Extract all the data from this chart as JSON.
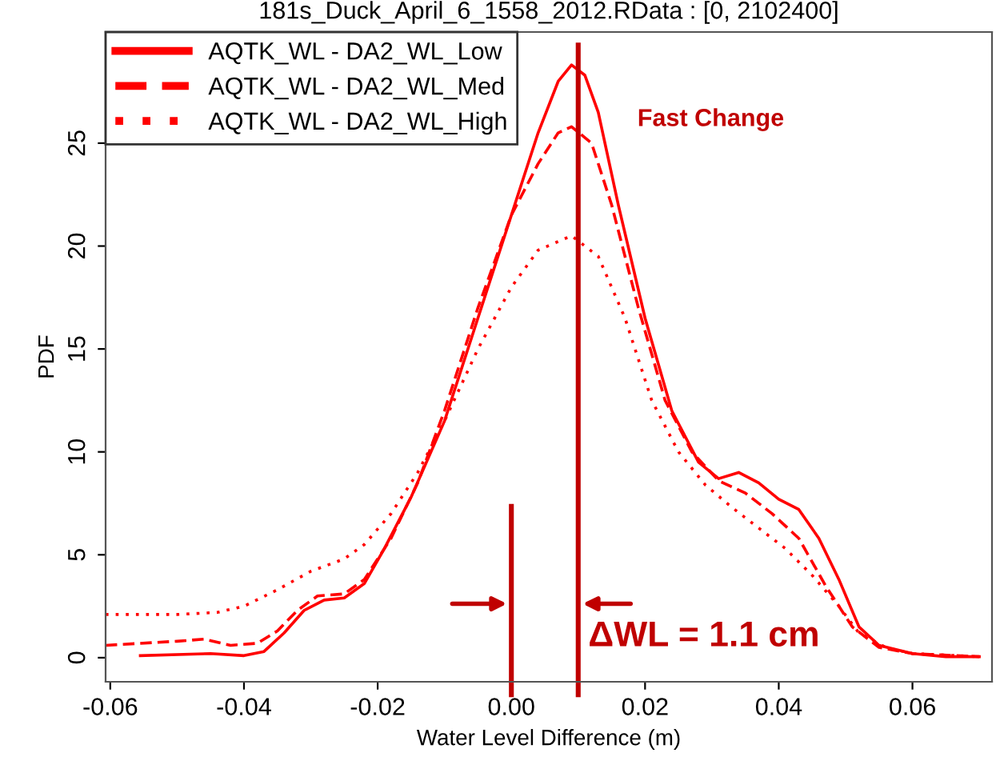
{
  "chart_data": {
    "type": "line",
    "title": "181s_Duck_April_6_1558_2012.RData : [0, 2102400]",
    "xlabel": "Water Level Difference (m)",
    "ylabel": "PDF",
    "xlim": [
      -0.0607,
      0.0719
    ],
    "ylim": [
      -1.17,
      30.4
    ],
    "xticks": [
      {
        "value": -0.06,
        "label": "-0.06"
      },
      {
        "value": -0.04,
        "label": "-0.04"
      },
      {
        "value": -0.02,
        "label": "-0.02"
      },
      {
        "value": 0,
        "label": "0.00"
      },
      {
        "value": 0.02,
        "label": "0.02"
      },
      {
        "value": 0.04,
        "label": "0.04"
      },
      {
        "value": 0.06,
        "label": "0.06"
      }
    ],
    "yticks": [
      0,
      5,
      10,
      15,
      20,
      25
    ],
    "grid": false,
    "legend": "top left",
    "marker": "none",
    "series": [
      {
        "name": "AQTK_WL - DA2_WL_Low",
        "color": "#ff0000",
        "line_style": "solid",
        "x": [
          -0.0555,
          -0.045,
          -0.04,
          -0.037,
          -0.034,
          -0.031,
          -0.028,
          -0.025,
          -0.022,
          -0.019,
          -0.015,
          -0.01,
          -0.005,
          0,
          0.004,
          0.007,
          0.009,
          0.011,
          0.013,
          0.016,
          0.02,
          0.024,
          0.028,
          0.031,
          0.034,
          0.037,
          0.04,
          0.043,
          0.046,
          0.049,
          0.052,
          0.055,
          0.06,
          0.065,
          0.07
        ],
        "values": [
          0.1,
          0.2,
          0.1,
          0.3,
          1.2,
          2.3,
          2.8,
          2.9,
          3.6,
          5.3,
          7.8,
          11.5,
          16.5,
          21.5,
          25.5,
          28,
          28.8,
          28.3,
          26.5,
          22,
          16.5,
          12,
          9.5,
          8.7,
          9.0,
          8.5,
          7.7,
          7.2,
          5.8,
          3.8,
          1.5,
          0.6,
          0.2,
          0.05,
          0.05
        ]
      },
      {
        "name": "AQTK_WL - DA2_WL_Med",
        "color": "#ff0000",
        "line_style": "dashed",
        "x": [
          -0.0607,
          -0.05,
          -0.046,
          -0.042,
          -0.038,
          -0.035,
          -0.032,
          -0.029,
          -0.025,
          -0.022,
          -0.018,
          -0.014,
          -0.01,
          -0.005,
          0,
          0.004,
          0.007,
          0.009,
          0.012,
          0.015,
          0.019,
          0.023,
          0.027,
          0.031,
          0.035,
          0.039,
          0.043,
          0.047,
          0.051,
          0.055,
          0.06,
          0.07
        ],
        "values": [
          0.6,
          0.8,
          0.9,
          0.6,
          0.7,
          1.3,
          2.3,
          3.0,
          3.1,
          3.8,
          5.8,
          8.5,
          12,
          17,
          21.5,
          24,
          25.5,
          25.8,
          25,
          22,
          17,
          12.5,
          10,
          8.6,
          8,
          7,
          5.8,
          3.5,
          1.5,
          0.5,
          0.2,
          0.05
        ]
      },
      {
        "name": "AQTK_WL - DA2_WL_High",
        "color": "#ff0000",
        "line_style": "dotted",
        "x": [
          -0.0607,
          -0.05,
          -0.044,
          -0.04,
          -0.035,
          -0.03,
          -0.025,
          -0.022,
          -0.018,
          -0.014,
          -0.01,
          -0.005,
          0,
          0.004,
          0.009,
          0.013,
          0.017,
          0.021,
          0.025,
          0.029,
          0.033,
          0.037,
          0.041,
          0.045,
          0.049,
          0.052,
          0.056,
          0.06,
          0.07
        ],
        "values": [
          2.1,
          2.1,
          2.2,
          2.5,
          3.3,
          4.2,
          4.8,
          5.5,
          7,
          9,
          11.5,
          15,
          18,
          19.8,
          20.5,
          19.5,
          16.5,
          12.5,
          10,
          8.4,
          7.3,
          6.3,
          5.3,
          4,
          2.5,
          1.2,
          0.5,
          0.2,
          0.05
        ]
      }
    ],
    "ref_lines": [
      {
        "axis": "x",
        "value": 0.01,
        "label": null,
        "color": "#c00000"
      },
      {
        "axis": "x",
        "value": 0,
        "label": null,
        "color": "#c00000"
      }
    ],
    "annotations": [
      "Fast Change",
      {
        "text": "ΔWL = 1.1 cm",
        "x": 0.0115,
        "y": 0.2
      }
    ]
  }
}
